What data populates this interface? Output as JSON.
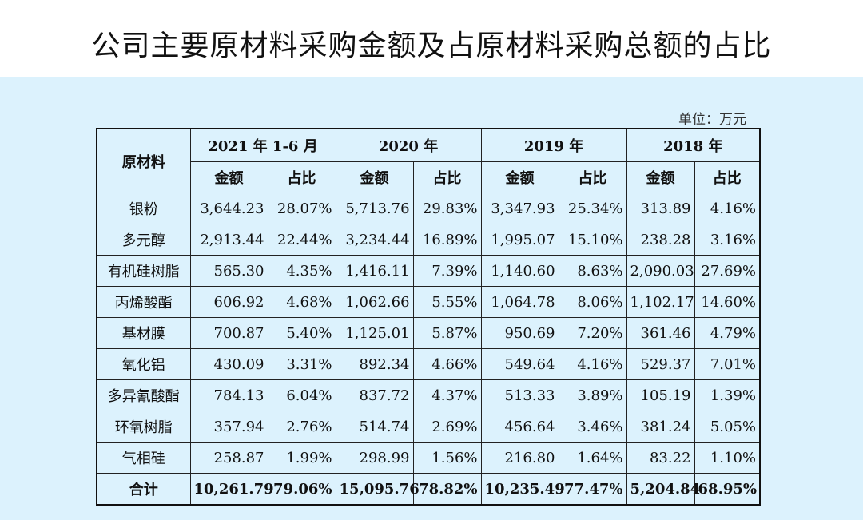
{
  "title": "公司主要原材料采购金额及占原材料采购总额的占比",
  "unit": "单位：万元",
  "header": {
    "material": "原材料",
    "periods": [
      "2021 年 1-6 月",
      "2020 年",
      "2019 年",
      "2018 年"
    ],
    "amount": "金额",
    "ratio": "占比"
  },
  "rows": [
    {
      "name": "银粉",
      "cells": [
        "3,644.23",
        "28.07%",
        "5,713.76",
        "29.83%",
        "3,347.93",
        "25.34%",
        "313.89",
        "4.16%"
      ]
    },
    {
      "name": "多元醇",
      "cells": [
        "2,913.44",
        "22.44%",
        "3,234.44",
        "16.89%",
        "1,995.07",
        "15.10%",
        "238.28",
        "3.16%"
      ]
    },
    {
      "name": "有机硅树脂",
      "cells": [
        "565.30",
        "4.35%",
        "1,416.11",
        "7.39%",
        "1,140.60",
        "8.63%",
        "2,090.03",
        "27.69%"
      ]
    },
    {
      "name": "丙烯酸酯",
      "cells": [
        "606.92",
        "4.68%",
        "1,062.66",
        "5.55%",
        "1,064.78",
        "8.06%",
        "1,102.17",
        "14.60%"
      ]
    },
    {
      "name": "基材膜",
      "cells": [
        "700.87",
        "5.40%",
        "1,125.01",
        "5.87%",
        "950.69",
        "7.20%",
        "361.46",
        "4.79%"
      ]
    },
    {
      "name": "氧化铝",
      "cells": [
        "430.09",
        "3.31%",
        "892.34",
        "4.66%",
        "549.64",
        "4.16%",
        "529.37",
        "7.01%"
      ]
    },
    {
      "name": "多异氰酸酯",
      "cells": [
        "784.13",
        "6.04%",
        "837.72",
        "4.37%",
        "513.33",
        "3.89%",
        "105.19",
        "1.39%"
      ]
    },
    {
      "name": "环氧树脂",
      "cells": [
        "357.94",
        "2.76%",
        "514.74",
        "2.69%",
        "456.64",
        "3.46%",
        "381.24",
        "5.05%"
      ]
    },
    {
      "name": "气相硅",
      "cells": [
        "258.87",
        "1.99%",
        "298.99",
        "1.56%",
        "216.80",
        "1.64%",
        "83.22",
        "1.10%"
      ]
    }
  ],
  "total": {
    "name": "合计",
    "cells": [
      "10,261.79",
      "79.06%",
      "15,095.76",
      "78.82%",
      "10,235.49",
      "77.47%",
      "5,204.84",
      "68.95%"
    ]
  }
}
